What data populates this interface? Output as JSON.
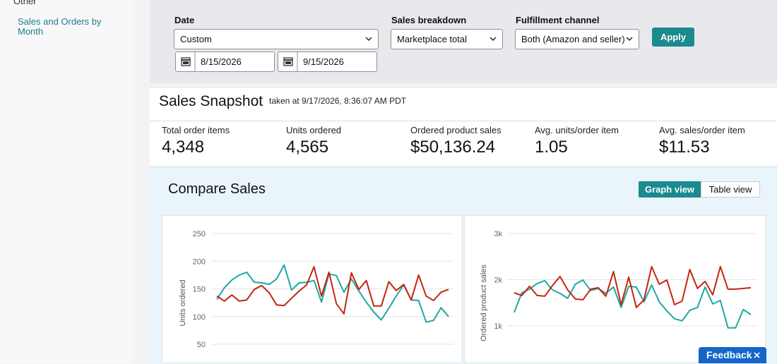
{
  "sidebar": {
    "section": "Other",
    "link": "Sales and Orders by Month"
  },
  "filters": {
    "date": {
      "label": "Date",
      "value": "Custom",
      "from": "8/15/2026",
      "to": "9/15/2026"
    },
    "sales_breakdown": {
      "label": "Sales breakdown",
      "value": "Marketplace total"
    },
    "fulfillment": {
      "label": "Fulfillment channel",
      "value": "Both (Amazon and seller)"
    },
    "apply": "Apply"
  },
  "snapshot": {
    "title": "Sales Snapshot",
    "taken": "taken at 9/17/2026, 8:36:07 AM PDT",
    "metrics": [
      {
        "label": "Total order items",
        "value": "4,348"
      },
      {
        "label": "Units ordered",
        "value": "4,565"
      },
      {
        "label": "Ordered product sales",
        "value": "$50,136.24"
      },
      {
        "label": "Avg. units/order item",
        "value": "1.05"
      },
      {
        "label": "Avg. sales/order item",
        "value": "$11.53"
      }
    ]
  },
  "compare": {
    "title": "Compare Sales",
    "views": [
      "Graph view",
      "Table view"
    ]
  },
  "chart_data": [
    {
      "type": "line",
      "y_label": "Units ordered",
      "ylim": [
        50,
        250
      ],
      "yticks": [
        50,
        100,
        150,
        200,
        250
      ],
      "grid": true,
      "series": [
        {
          "color": "#1fa8a3",
          "values": [
            131,
            152,
            166,
            175,
            180,
            162,
            161,
            158,
            168,
            193,
            148,
            161,
            162,
            165,
            126,
            177,
            174,
            144,
            168,
            146,
            126,
            108,
            94,
            115,
            137,
            157,
            130,
            129,
            90,
            93,
            116,
            100
          ]
        },
        {
          "color": "#c4260d",
          "values": [
            137,
            128,
            139,
            128,
            130,
            149,
            156,
            143,
            121,
            120,
            133,
            146,
            157,
            190,
            137,
            180,
            123,
            105,
            179,
            149,
            165,
            119,
            119,
            163,
            147,
            158,
            130,
            175,
            137,
            129,
            144,
            149
          ]
        }
      ]
    },
    {
      "type": "line",
      "y_label": "Ordered product sales",
      "ylim": [
        600,
        3000
      ],
      "yticks": [
        {
          "value": 1000,
          "label": "1k"
        },
        {
          "value": 2000,
          "label": "2k"
        },
        {
          "value": 3000,
          "label": "3k"
        }
      ],
      "grid": true,
      "series": [
        {
          "color": "#1fa8a3",
          "values": [
            1290,
            1718,
            1794,
            1916,
            1977,
            1779,
            1702,
            1595,
            1901,
            1992,
            1763,
            1809,
            1702,
            1840,
            1397,
            1855,
            1840,
            1519,
            1885,
            1519,
            1321,
            1153,
            1107,
            1336,
            1397,
            1840,
            1473,
            1550,
            954,
            954,
            1351,
            1244
          ]
        },
        {
          "color": "#c4260d",
          "values": [
            1718,
            1656,
            1855,
            1656,
            1641,
            1870,
            2069,
            1779,
            1580,
            1565,
            1794,
            1824,
            1641,
            2176,
            1458,
            2053,
            1397,
            1565,
            2282,
            1901,
            1992,
            1458,
            1534,
            2221,
            1809,
            1962,
            1672,
            2282,
            1794,
            1794,
            1809,
            1824
          ]
        }
      ]
    }
  ],
  "feedback": "Feedback"
}
